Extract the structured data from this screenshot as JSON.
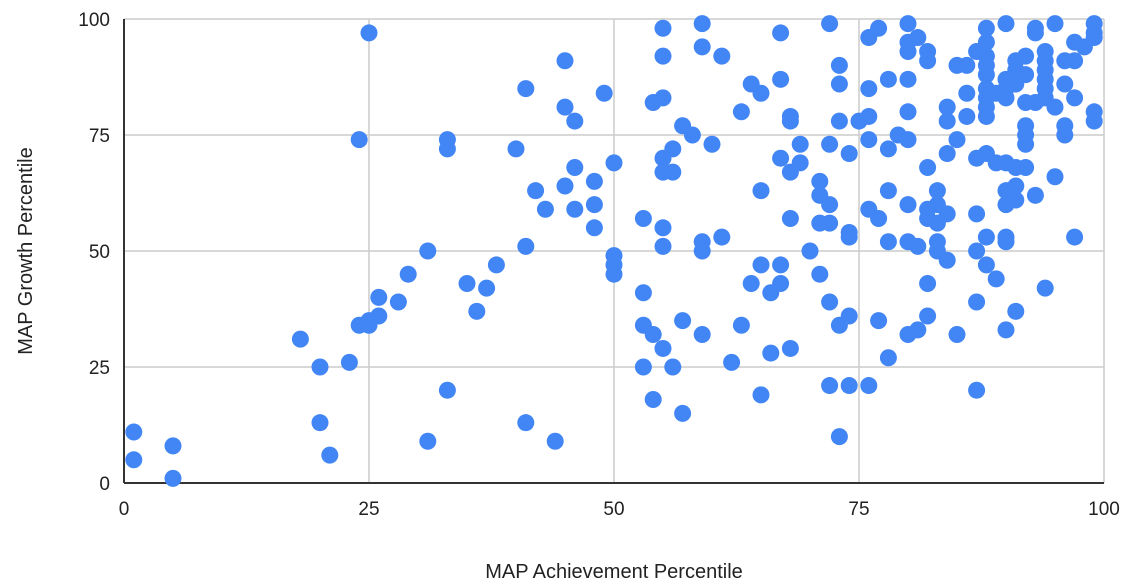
{
  "chart_data": {
    "type": "scatter",
    "xlabel": "MAP Achievement Percentile",
    "ylabel": "MAP Growth Percentile",
    "xlim": [
      0,
      100
    ],
    "ylim": [
      0,
      100
    ],
    "x_ticks": [
      "0",
      "25",
      "50",
      "75",
      "100"
    ],
    "y_ticks": [
      "0",
      "25",
      "50",
      "75",
      "100"
    ],
    "grid": true,
    "legend": "none",
    "point_color": "#4285f4",
    "series": [
      {
        "points": [
          [
            1,
            11
          ],
          [
            1,
            5
          ],
          [
            5,
            8
          ],
          [
            5,
            1
          ],
          [
            18,
            31
          ],
          [
            20,
            25
          ],
          [
            20,
            13
          ],
          [
            21,
            6
          ],
          [
            23,
            26
          ],
          [
            24,
            34
          ],
          [
            24,
            74
          ],
          [
            25,
            35
          ],
          [
            25,
            34
          ],
          [
            25,
            97
          ],
          [
            26,
            36
          ],
          [
            26,
            40
          ],
          [
            28,
            39
          ],
          [
            29,
            45
          ],
          [
            31,
            50
          ],
          [
            31,
            9
          ],
          [
            33,
            74
          ],
          [
            33,
            72
          ],
          [
            33,
            20
          ],
          [
            35,
            43
          ],
          [
            36,
            37
          ],
          [
            37,
            42
          ],
          [
            38,
            47
          ],
          [
            40,
            72
          ],
          [
            41,
            85
          ],
          [
            41,
            51
          ],
          [
            41,
            13
          ],
          [
            42,
            63
          ],
          [
            43,
            59
          ],
          [
            44,
            9
          ],
          [
            45,
            91
          ],
          [
            45,
            81
          ],
          [
            45,
            64
          ],
          [
            46,
            78
          ],
          [
            46,
            68
          ],
          [
            46,
            59
          ],
          [
            48,
            65
          ],
          [
            48,
            60
          ],
          [
            48,
            55
          ],
          [
            49,
            84
          ],
          [
            50,
            69
          ],
          [
            50,
            49
          ],
          [
            50,
            47
          ],
          [
            50,
            45
          ],
          [
            53,
            57
          ],
          [
            53,
            41
          ],
          [
            53,
            34
          ],
          [
            53,
            25
          ],
          [
            54,
            82
          ],
          [
            54,
            32
          ],
          [
            54,
            18
          ],
          [
            55,
            98
          ],
          [
            55,
            92
          ],
          [
            55,
            83
          ],
          [
            55,
            70
          ],
          [
            55,
            67
          ],
          [
            55,
            55
          ],
          [
            55,
            51
          ],
          [
            55,
            29
          ],
          [
            56,
            72
          ],
          [
            56,
            67
          ],
          [
            56,
            25
          ],
          [
            57,
            77
          ],
          [
            57,
            35
          ],
          [
            57,
            15
          ],
          [
            58,
            75
          ],
          [
            59,
            99
          ],
          [
            59,
            94
          ],
          [
            59,
            52
          ],
          [
            59,
            50
          ],
          [
            59,
            32
          ],
          [
            60,
            73
          ],
          [
            61,
            92
          ],
          [
            61,
            53
          ],
          [
            62,
            26
          ],
          [
            63,
            80
          ],
          [
            63,
            34
          ],
          [
            64,
            86
          ],
          [
            64,
            43
          ],
          [
            65,
            84
          ],
          [
            65,
            63
          ],
          [
            65,
            47
          ],
          [
            65,
            19
          ],
          [
            66,
            41
          ],
          [
            66,
            28
          ],
          [
            67,
            97
          ],
          [
            67,
            87
          ],
          [
            67,
            70
          ],
          [
            67,
            47
          ],
          [
            67,
            43
          ],
          [
            68,
            79
          ],
          [
            68,
            78
          ],
          [
            68,
            67
          ],
          [
            68,
            57
          ],
          [
            68,
            29
          ],
          [
            69,
            73
          ],
          [
            69,
            69
          ],
          [
            70,
            50
          ],
          [
            71,
            65
          ],
          [
            71,
            62
          ],
          [
            71,
            56
          ],
          [
            71,
            45
          ],
          [
            72,
            99
          ],
          [
            72,
            73
          ],
          [
            72,
            60
          ],
          [
            72,
            56
          ],
          [
            72,
            39
          ],
          [
            72,
            21
          ],
          [
            73,
            90
          ],
          [
            73,
            86
          ],
          [
            73,
            78
          ],
          [
            73,
            34
          ],
          [
            73,
            10
          ],
          [
            74,
            71
          ],
          [
            74,
            54
          ],
          [
            74,
            53
          ],
          [
            74,
            36
          ],
          [
            74,
            21
          ],
          [
            75,
            78
          ],
          [
            76,
            96
          ],
          [
            76,
            85
          ],
          [
            76,
            79
          ],
          [
            76,
            74
          ],
          [
            76,
            59
          ],
          [
            76,
            21
          ],
          [
            77,
            98
          ],
          [
            77,
            57
          ],
          [
            77,
            35
          ],
          [
            78,
            87
          ],
          [
            78,
            72
          ],
          [
            78,
            63
          ],
          [
            78,
            52
          ],
          [
            78,
            27
          ],
          [
            79,
            75
          ],
          [
            80,
            99
          ],
          [
            80,
            95
          ],
          [
            80,
            93
          ],
          [
            80,
            87
          ],
          [
            80,
            80
          ],
          [
            80,
            74
          ],
          [
            80,
            60
          ],
          [
            80,
            52
          ],
          [
            80,
            32
          ],
          [
            81,
            96
          ],
          [
            81,
            51
          ],
          [
            81,
            33
          ],
          [
            82,
            93
          ],
          [
            82,
            91
          ],
          [
            82,
            68
          ],
          [
            82,
            59
          ],
          [
            82,
            57
          ],
          [
            82,
            43
          ],
          [
            82,
            36
          ],
          [
            83,
            63
          ],
          [
            83,
            60
          ],
          [
            83,
            56
          ],
          [
            83,
            52
          ],
          [
            83,
            50
          ],
          [
            84,
            81
          ],
          [
            84,
            78
          ],
          [
            84,
            71
          ],
          [
            84,
            58
          ],
          [
            84,
            48
          ],
          [
            85,
            90
          ],
          [
            85,
            74
          ],
          [
            85,
            32
          ],
          [
            86,
            90
          ],
          [
            86,
            84
          ],
          [
            86,
            79
          ],
          [
            87,
            93
          ],
          [
            87,
            70
          ],
          [
            87,
            58
          ],
          [
            87,
            50
          ],
          [
            87,
            39
          ],
          [
            87,
            20
          ],
          [
            88,
            98
          ],
          [
            88,
            95
          ],
          [
            88,
            92
          ],
          [
            88,
            90
          ],
          [
            88,
            88
          ],
          [
            88,
            85
          ],
          [
            88,
            83
          ],
          [
            88,
            81
          ],
          [
            88,
            79
          ],
          [
            88,
            71
          ],
          [
            88,
            53
          ],
          [
            88,
            47
          ],
          [
            89,
            84
          ],
          [
            89,
            69
          ],
          [
            89,
            44
          ],
          [
            90,
            99
          ],
          [
            90,
            87
          ],
          [
            90,
            85
          ],
          [
            90,
            83
          ],
          [
            90,
            69
          ],
          [
            90,
            63
          ],
          [
            90,
            60
          ],
          [
            90,
            53
          ],
          [
            90,
            52
          ],
          [
            90,
            33
          ],
          [
            91,
            91
          ],
          [
            91,
            89
          ],
          [
            91,
            86
          ],
          [
            91,
            68
          ],
          [
            91,
            64
          ],
          [
            91,
            61
          ],
          [
            91,
            37
          ],
          [
            92,
            92
          ],
          [
            92,
            88
          ],
          [
            92,
            82
          ],
          [
            92,
            77
          ],
          [
            92,
            75
          ],
          [
            92,
            73
          ],
          [
            92,
            68
          ],
          [
            93,
            98
          ],
          [
            93,
            97
          ],
          [
            93,
            82
          ],
          [
            93,
            62
          ],
          [
            94,
            93
          ],
          [
            94,
            91
          ],
          [
            94,
            89
          ],
          [
            94,
            87
          ],
          [
            94,
            85
          ],
          [
            94,
            83
          ],
          [
            94,
            42
          ],
          [
            95,
            99
          ],
          [
            95,
            81
          ],
          [
            95,
            66
          ],
          [
            96,
            91
          ],
          [
            96,
            86
          ],
          [
            96,
            77
          ],
          [
            96,
            75
          ],
          [
            97,
            95
          ],
          [
            97,
            91
          ],
          [
            97,
            83
          ],
          [
            97,
            53
          ],
          [
            98,
            94
          ],
          [
            99,
            99
          ],
          [
            99,
            97
          ],
          [
            99,
            96
          ],
          [
            99,
            80
          ],
          [
            99,
            78
          ]
        ]
      }
    ]
  }
}
